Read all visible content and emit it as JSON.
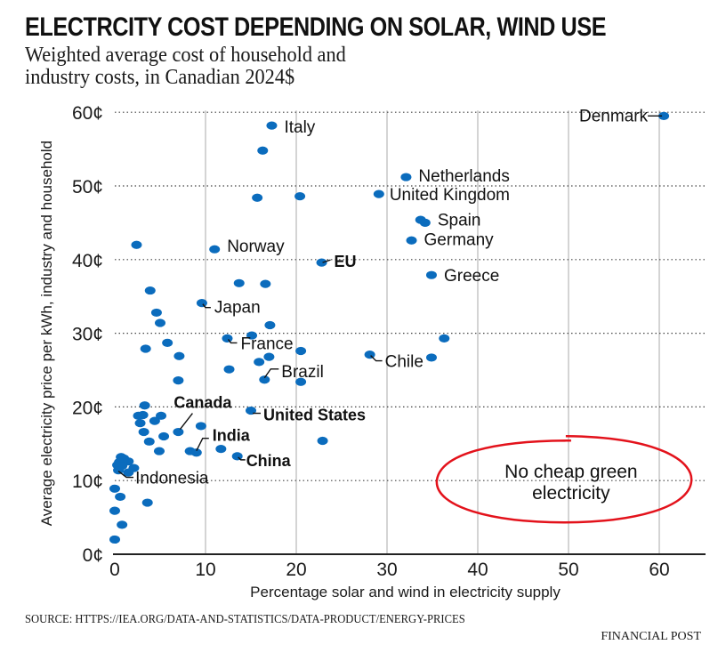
{
  "header": {
    "title": "ELECTRCITY COST DEPENDING ON SOLAR, WIND USE",
    "subtitle": "Weighted average cost of household and industry costs, in Canadian 2024$"
  },
  "footer": {
    "source": "SOURCE: HTTPS://IEA.ORG/DATA-AND-STATISTICS/DATA-PRODUCT/ENERGY-PRICES",
    "publisher": "FINANCIAL POST"
  },
  "colors": {
    "point": "#0b6cbd",
    "annotation": "#e3121b",
    "grid": "#bdbdbd",
    "text": "#111111"
  },
  "chart_data": {
    "type": "scatter",
    "title": "ELECTRCITY COST DEPENDING ON SOLAR, WIND USE",
    "subtitle": "Weighted average cost of household and industry costs, in Canadian 2024$",
    "xlabel": "Percentage solar and wind in electricity supply",
    "ylabel": "Average electricity price per kWh, industry and household",
    "xlim": [
      0,
      65
    ],
    "ylim": [
      0,
      60
    ],
    "xticks": [
      0,
      10,
      20,
      30,
      40,
      50,
      60
    ],
    "xtick_labels": [
      "0",
      "10",
      "20",
      "30",
      "40",
      "50",
      "60"
    ],
    "yticks": [
      0,
      10,
      20,
      30,
      40,
      50,
      60
    ],
    "ytick_labels": [
      "0¢",
      "10¢",
      "20¢",
      "30¢",
      "40¢",
      "50¢",
      "60¢"
    ],
    "grid": {
      "x": "solid vertical",
      "y": "dotted horizontal"
    },
    "labeled_points": [
      {
        "name": "Denmark",
        "x": 60.5,
        "y": 59.5,
        "bold": false
      },
      {
        "name": "Italy",
        "x": 17.3,
        "y": 58.2,
        "bold": false
      },
      {
        "name": "Netherlands",
        "x": 32.1,
        "y": 51.2,
        "bold": false
      },
      {
        "name": "United Kingdom",
        "x": 29.1,
        "y": 48.9,
        "bold": false
      },
      {
        "name": "Spain",
        "x": 34.2,
        "y": 45.0,
        "bold": false
      },
      {
        "name": "Germany",
        "x": 32.7,
        "y": 42.6,
        "bold": false
      },
      {
        "name": "Norway",
        "x": 11.0,
        "y": 41.4,
        "bold": false
      },
      {
        "name": "EU",
        "x": 22.8,
        "y": 39.6,
        "bold": true
      },
      {
        "name": "Greece",
        "x": 34.9,
        "y": 37.9,
        "bold": false
      },
      {
        "name": "Japan",
        "x": 9.6,
        "y": 34.1,
        "bold": false
      },
      {
        "name": "France",
        "x": 12.4,
        "y": 29.3,
        "bold": false
      },
      {
        "name": "Chile",
        "x": 28.1,
        "y": 27.1,
        "bold": false
      },
      {
        "name": "Brazil",
        "x": 16.5,
        "y": 23.7,
        "bold": false
      },
      {
        "name": "United States",
        "x": 15.0,
        "y": 19.5,
        "bold": true
      },
      {
        "name": "Canada",
        "x": 7.0,
        "y": 16.6,
        "bold": true
      },
      {
        "name": "India",
        "x": 9.0,
        "y": 13.8,
        "bold": true
      },
      {
        "name": "China",
        "x": 13.5,
        "y": 13.3,
        "bold": true
      },
      {
        "name": "Indonesia",
        "x": 0.4,
        "y": 11.4,
        "bold": false
      }
    ],
    "unlabeled_points": [
      {
        "x": 16.3,
        "y": 54.8
      },
      {
        "x": 15.7,
        "y": 48.4
      },
      {
        "x": 20.4,
        "y": 48.6
      },
      {
        "x": 33.7,
        "y": 45.4
      },
      {
        "x": 2.4,
        "y": 42.0
      },
      {
        "x": 13.7,
        "y": 36.8
      },
      {
        "x": 16.6,
        "y": 36.7
      },
      {
        "x": 3.9,
        "y": 35.8
      },
      {
        "x": 4.6,
        "y": 32.8
      },
      {
        "x": 5.0,
        "y": 31.4
      },
      {
        "x": 17.1,
        "y": 31.1
      },
      {
        "x": 15.1,
        "y": 29.7
      },
      {
        "x": 36.3,
        "y": 29.3
      },
      {
        "x": 5.8,
        "y": 28.7
      },
      {
        "x": 3.4,
        "y": 27.9
      },
      {
        "x": 20.5,
        "y": 27.6
      },
      {
        "x": 7.1,
        "y": 26.9
      },
      {
        "x": 17.0,
        "y": 26.8
      },
      {
        "x": 34.9,
        "y": 26.7
      },
      {
        "x": 15.9,
        "y": 26.1
      },
      {
        "x": 12.6,
        "y": 25.1
      },
      {
        "x": 7.0,
        "y": 23.6
      },
      {
        "x": 20.5,
        "y": 23.4
      },
      {
        "x": 3.3,
        "y": 20.2
      },
      {
        "x": 2.6,
        "y": 18.8
      },
      {
        "x": 3.1,
        "y": 18.9
      },
      {
        "x": 5.1,
        "y": 18.8
      },
      {
        "x": 4.4,
        "y": 18.1
      },
      {
        "x": 2.8,
        "y": 17.8
      },
      {
        "x": 9.5,
        "y": 17.4
      },
      {
        "x": 3.2,
        "y": 16.6
      },
      {
        "x": 5.4,
        "y": 16.0
      },
      {
        "x": 3.8,
        "y": 15.3
      },
      {
        "x": 22.9,
        "y": 15.4
      },
      {
        "x": 4.9,
        "y": 14.0
      },
      {
        "x": 8.3,
        "y": 14.0
      },
      {
        "x": 11.7,
        "y": 14.3
      },
      {
        "x": 0.7,
        "y": 13.2
      },
      {
        "x": 1.0,
        "y": 13.0
      },
      {
        "x": 0.5,
        "y": 12.5
      },
      {
        "x": 1.5,
        "y": 12.6
      },
      {
        "x": 0.3,
        "y": 12.1
      },
      {
        "x": 0.8,
        "y": 12.0
      },
      {
        "x": 2.1,
        "y": 11.7
      },
      {
        "x": 1.5,
        "y": 11.1
      },
      {
        "x": 0.0,
        "y": 8.9
      },
      {
        "x": 0.6,
        "y": 7.8
      },
      {
        "x": 3.6,
        "y": 7.0
      },
      {
        "x": 0.0,
        "y": 5.9
      },
      {
        "x": 0.8,
        "y": 4.0
      },
      {
        "x": 0.0,
        "y": 2.0
      }
    ],
    "annotations": [
      {
        "text_lines": [
          "No cheap green",
          "electricity"
        ],
        "shape": "hand-drawn red ellipse",
        "center": {
          "x": 49.5,
          "y": 10.0
        }
      }
    ]
  }
}
